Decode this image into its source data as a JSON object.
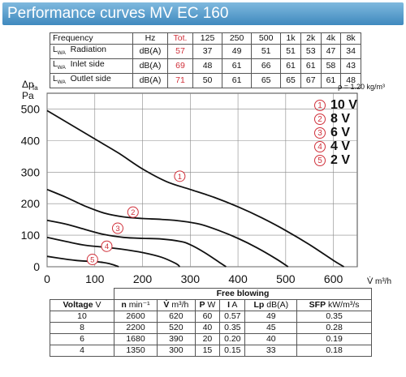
{
  "header": {
    "title": "Performance curves MV EC 160"
  },
  "frequency_table": {
    "header": {
      "label": "Frequency",
      "unit": "Hz",
      "total": "Tot.",
      "bands": [
        "125",
        "250",
        "500",
        "1k",
        "2k",
        "4k",
        "8k"
      ]
    },
    "rows": [
      {
        "lwa": "L",
        "sub": "WA",
        "label": "Radiation",
        "unit": "dB(A)",
        "total": "57",
        "values": [
          "37",
          "49",
          "51",
          "51",
          "53",
          "47",
          "34"
        ]
      },
      {
        "lwa": "L",
        "sub": "WA",
        "label": "Inlet side",
        "unit": "dB(A)",
        "total": "69",
        "values": [
          "48",
          "61",
          "66",
          "61",
          "61",
          "58",
          "43"
        ]
      },
      {
        "lwa": "L",
        "sub": "WA",
        "label": "Outlet side",
        "unit": "dB(A)",
        "total": "71",
        "values": [
          "50",
          "61",
          "65",
          "65",
          "67",
          "61",
          "48"
        ]
      }
    ]
  },
  "chart_data": {
    "type": "line",
    "ylabel": "Δp",
    "ylabel_sub": "fa",
    "yunit": "Pa",
    "xlabel": "V̇",
    "xunit": "m³/h",
    "density_note": "ρ = 1.20 kg/m³",
    "xlim": [
      0,
      650
    ],
    "ylim": [
      0,
      550
    ],
    "x_ticks": [
      "0",
      "100",
      "200",
      "300",
      "400",
      "500",
      "600"
    ],
    "y_ticks": [
      "0",
      "100",
      "200",
      "300",
      "400",
      "500"
    ],
    "grid": true,
    "legend_placement": "top-right",
    "series": [
      {
        "marker": "1",
        "name": "10 V",
        "points": [
          [
            0,
            495
          ],
          [
            50,
            450
          ],
          [
            100,
            405
          ],
          [
            150,
            360
          ],
          [
            200,
            310
          ],
          [
            250,
            270
          ],
          [
            300,
            245
          ],
          [
            350,
            220
          ],
          [
            400,
            190
          ],
          [
            450,
            155
          ],
          [
            500,
            115
          ],
          [
            550,
            70
          ],
          [
            600,
            20
          ],
          [
            622,
            0
          ]
        ]
      },
      {
        "marker": "2",
        "name": "8 V",
        "points": [
          [
            0,
            245
          ],
          [
            40,
            220
          ],
          [
            80,
            192
          ],
          [
            120,
            170
          ],
          [
            160,
            158
          ],
          [
            200,
            153
          ],
          [
            240,
            150
          ],
          [
            280,
            145
          ],
          [
            320,
            135
          ],
          [
            360,
            115
          ],
          [
            400,
            90
          ],
          [
            440,
            60
          ],
          [
            480,
            25
          ],
          [
            505,
            0
          ]
        ]
      },
      {
        "marker": "3",
        "name": "6 V",
        "points": [
          [
            0,
            147
          ],
          [
            40,
            135
          ],
          [
            80,
            118
          ],
          [
            120,
            102
          ],
          [
            160,
            93
          ],
          [
            200,
            90
          ],
          [
            240,
            88
          ],
          [
            280,
            80
          ],
          [
            300,
            70
          ],
          [
            330,
            45
          ],
          [
            360,
            15
          ],
          [
            375,
            0
          ]
        ]
      },
      {
        "marker": "4",
        "name": "4 V",
        "points": [
          [
            0,
            93
          ],
          [
            40,
            80
          ],
          [
            80,
            68
          ],
          [
            120,
            62
          ],
          [
            160,
            55
          ],
          [
            200,
            45
          ],
          [
            240,
            30
          ],
          [
            270,
            10
          ],
          [
            278,
            0
          ]
        ]
      },
      {
        "marker": "5",
        "name": "2 V",
        "points": [
          [
            0,
            33
          ],
          [
            30,
            26
          ],
          [
            60,
            20
          ],
          [
            90,
            17
          ],
          [
            110,
            15
          ],
          [
            130,
            10
          ],
          [
            145,
            3
          ],
          [
            150,
            0
          ]
        ]
      }
    ],
    "markers_on_curves": [
      {
        "n": "1",
        "x": 278,
        "y": 287
      },
      {
        "n": "2",
        "x": 180,
        "y": 173
      },
      {
        "n": "3",
        "x": 148,
        "y": 122
      },
      {
        "n": "4",
        "x": 125,
        "y": 65
      },
      {
        "n": "5",
        "x": 95,
        "y": 23
      }
    ]
  },
  "free_blowing_table": {
    "caption": "Free blowing",
    "headers": [
      {
        "bold": "Voltage",
        "unit": " V"
      },
      {
        "bold": "n",
        "unit": " min⁻¹"
      },
      {
        "bold": "V̇",
        "unit": " m³/h"
      },
      {
        "bold": "P",
        "unit": " W"
      },
      {
        "bold": "I",
        "unit": " A"
      },
      {
        "bold": "Lp",
        "unit": " dB(A)"
      },
      {
        "bold": "SFP",
        "unit": " kW/m³/s"
      }
    ],
    "rows": [
      [
        "10",
        "2600",
        "620",
        "60",
        "0.57",
        "49",
        "0.35"
      ],
      [
        "8",
        "2200",
        "520",
        "40",
        "0.35",
        "45",
        "0.28"
      ],
      [
        "6",
        "1680",
        "390",
        "20",
        "0.20",
        "40",
        "0.19"
      ],
      [
        "4",
        "1350",
        "300",
        "15",
        "0.15",
        "33",
        "0.18"
      ]
    ]
  },
  "colors": {
    "title_bar": "#3f89be",
    "accent_red": "#d0303a",
    "curve": "#111111",
    "grid": "#888888"
  }
}
